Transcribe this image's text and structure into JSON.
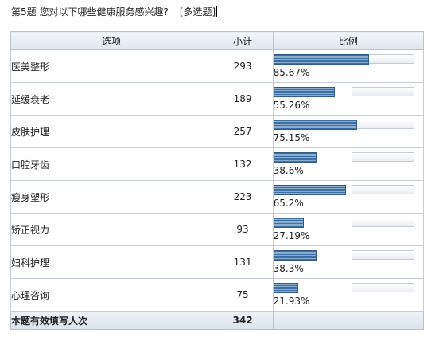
{
  "question": {
    "title": "第5题   您对以下哪些健康服务感兴趣?",
    "tag": "[多选题]"
  },
  "table": {
    "headers": {
      "option": "选项",
      "count": "小计",
      "ratio": "比例"
    },
    "rows": [
      {
        "label": "医美整形",
        "count": "293",
        "percent_label": "85.67%",
        "percent": 85.67
      },
      {
        "label": "延缓衰老",
        "count": "189",
        "percent_label": "55.26%",
        "percent": 55.26
      },
      {
        "label": "皮肤护理",
        "count": "257",
        "percent_label": "75.15%",
        "percent": 75.15
      },
      {
        "label": "口腔牙齿",
        "count": "132",
        "percent_label": "38.6%",
        "percent": 38.6
      },
      {
        "label": "瘦身塑形",
        "count": "223",
        "percent_label": "65.2%",
        "percent": 65.2
      },
      {
        "label": "矫正视力",
        "count": "93",
        "percent_label": "27.19%",
        "percent": 27.19
      },
      {
        "label": "妇科护理",
        "count": "131",
        "percent_label": "38.3%",
        "percent": 38.3
      },
      {
        "label": "心理咨询",
        "count": "75",
        "percent_label": "21.93%",
        "percent": 21.93
      }
    ],
    "total": {
      "label": "本题有效填写人次",
      "count": "342"
    }
  },
  "colors": {
    "bar_fill": "#3e6fa0",
    "bar_border": "#2f5b88",
    "header_bg": "#dfe6ef",
    "border": "#c6cdd6"
  }
}
